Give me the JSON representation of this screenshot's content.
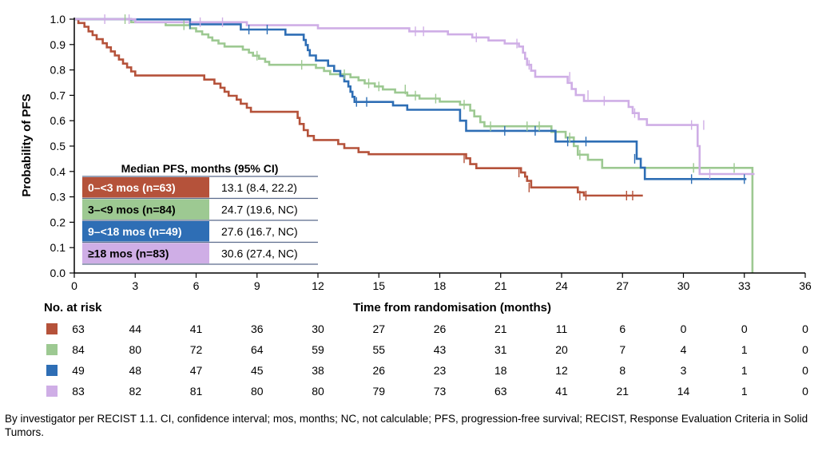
{
  "chart_data": {
    "type": "line",
    "subtype": "kaplan-meier",
    "ylabel": "Probability of PFS",
    "xlabel": "Time from randomisation (months)",
    "xlim": [
      0,
      36
    ],
    "ylim": [
      0,
      1
    ],
    "x_ticks": [
      0,
      3,
      6,
      9,
      12,
      15,
      18,
      21,
      24,
      27,
      30,
      33,
      36
    ],
    "y_ticks": [
      "0.0",
      "0.1",
      "0.2",
      "0.3",
      "0.4",
      "0.5",
      "0.6",
      "0.7",
      "0.8",
      "0.9",
      "1.0"
    ],
    "legend_title": "Median PFS, months (95% CI)",
    "risk_header": "No. at risk",
    "series": [
      {
        "name": "0–<3 mos (n=63)",
        "median": "13.1 (8.4, 22.2)",
        "color": "#b5523a",
        "at_risk": [
          63,
          44,
          41,
          36,
          30,
          27,
          26,
          21,
          11,
          6,
          0,
          0,
          0
        ],
        "steps": [
          [
            0,
            1.0
          ],
          [
            0.2,
            0.985
          ],
          [
            0.5,
            0.97
          ],
          [
            0.7,
            0.952
          ],
          [
            0.9,
            0.937
          ],
          [
            1.1,
            0.921
          ],
          [
            1.4,
            0.905
          ],
          [
            1.6,
            0.889
          ],
          [
            1.8,
            0.873
          ],
          [
            2.0,
            0.857
          ],
          [
            2.2,
            0.841
          ],
          [
            2.4,
            0.825
          ],
          [
            2.6,
            0.81
          ],
          [
            2.8,
            0.794
          ],
          [
            3.0,
            0.778
          ],
          [
            6.4,
            0.762
          ],
          [
            6.9,
            0.746
          ],
          [
            7.2,
            0.73
          ],
          [
            7.4,
            0.714
          ],
          [
            7.6,
            0.698
          ],
          [
            8.0,
            0.683
          ],
          [
            8.2,
            0.667
          ],
          [
            8.5,
            0.651
          ],
          [
            8.7,
            0.635
          ],
          [
            11.0,
            0.611
          ],
          [
            11.1,
            0.587
          ],
          [
            11.3,
            0.563
          ],
          [
            11.5,
            0.54
          ],
          [
            11.8,
            0.524
          ],
          [
            13.0,
            0.508
          ],
          [
            13.3,
            0.492
          ],
          [
            14.0,
            0.476
          ],
          [
            14.5,
            0.468
          ],
          [
            19.3,
            0.452
          ],
          [
            19.5,
            0.429
          ],
          [
            19.8,
            0.413
          ],
          [
            22.0,
            0.396
          ],
          [
            22.2,
            0.38
          ],
          [
            22.3,
            0.363
          ],
          [
            22.5,
            0.337
          ],
          [
            24.8,
            0.318
          ],
          [
            25.1,
            0.305
          ]
        ],
        "end": 28.0,
        "censors": [
          [
            19.2,
            0.452
          ],
          [
            21.9,
            0.396
          ],
          [
            22.4,
            0.337
          ],
          [
            24.9,
            0.305
          ],
          [
            25.2,
            0.305
          ],
          [
            27.2,
            0.305
          ],
          [
            27.5,
            0.305
          ]
        ]
      },
      {
        "name": "3–<9 mos (n=84)",
        "median": "24.7 (19.6, NC)",
        "color": "#9dc992",
        "at_risk": [
          84,
          80,
          72,
          64,
          59,
          55,
          43,
          31,
          20,
          7,
          4,
          1,
          0
        ],
        "steps": [
          [
            0,
            1.0
          ],
          [
            2.8,
            0.988
          ],
          [
            4.5,
            0.976
          ],
          [
            5.7,
            0.964
          ],
          [
            6.0,
            0.952
          ],
          [
            6.3,
            0.94
          ],
          [
            6.6,
            0.928
          ],
          [
            6.8,
            0.916
          ],
          [
            7.1,
            0.904
          ],
          [
            7.4,
            0.892
          ],
          [
            8.3,
            0.88
          ],
          [
            8.6,
            0.868
          ],
          [
            8.8,
            0.856
          ],
          [
            9.1,
            0.844
          ],
          [
            9.4,
            0.832
          ],
          [
            9.6,
            0.82
          ],
          [
            11.9,
            0.808
          ],
          [
            12.3,
            0.796
          ],
          [
            12.6,
            0.783
          ],
          [
            13.6,
            0.771
          ],
          [
            14.0,
            0.759
          ],
          [
            14.3,
            0.747
          ],
          [
            14.8,
            0.735
          ],
          [
            15.2,
            0.723
          ],
          [
            15.8,
            0.711
          ],
          [
            16.4,
            0.699
          ],
          [
            17.0,
            0.687
          ],
          [
            18.0,
            0.675
          ],
          [
            19.0,
            0.663
          ],
          [
            19.5,
            0.64
          ],
          [
            19.7,
            0.617
          ],
          [
            20.0,
            0.594
          ],
          [
            20.2,
            0.578
          ],
          [
            23.5,
            0.556
          ],
          [
            24.2,
            0.534
          ],
          [
            24.6,
            0.5
          ],
          [
            24.8,
            0.466
          ],
          [
            25.3,
            0.446
          ],
          [
            26.0,
            0.414
          ],
          [
            33.2,
            0.414
          ],
          [
            33.4,
            0.0
          ]
        ],
        "end": 33.4,
        "censors": [
          [
            2.5,
            1.0
          ],
          [
            5.4,
            0.976
          ],
          [
            9.0,
            0.856
          ],
          [
            11.2,
            0.82
          ],
          [
            13.3,
            0.783
          ],
          [
            14.5,
            0.747
          ],
          [
            15.0,
            0.735
          ],
          [
            16.3,
            0.723
          ],
          [
            16.8,
            0.699
          ],
          [
            17.8,
            0.687
          ],
          [
            19.2,
            0.663
          ],
          [
            20.5,
            0.578
          ],
          [
            22.3,
            0.578
          ],
          [
            22.9,
            0.578
          ],
          [
            24.4,
            0.534
          ],
          [
            24.9,
            0.466
          ],
          [
            30.5,
            0.414
          ],
          [
            32.5,
            0.414
          ]
        ]
      },
      {
        "name": "9–<18 mos (n=49)",
        "median": "27.6 (16.7, NC)",
        "color": "#2e6eb5",
        "at_risk": [
          49,
          48,
          47,
          45,
          38,
          26,
          23,
          18,
          12,
          8,
          3,
          1,
          0
        ],
        "steps": [
          [
            0,
            1.0
          ],
          [
            2.8,
            0.999
          ],
          [
            5.7,
            0.98
          ],
          [
            8.2,
            0.959
          ],
          [
            10.4,
            0.939
          ],
          [
            11.3,
            0.918
          ],
          [
            11.4,
            0.898
          ],
          [
            11.5,
            0.878
          ],
          [
            11.6,
            0.857
          ],
          [
            11.9,
            0.837
          ],
          [
            12.5,
            0.816
          ],
          [
            12.8,
            0.796
          ],
          [
            13.1,
            0.776
          ],
          [
            13.3,
            0.755
          ],
          [
            13.5,
            0.735
          ],
          [
            13.6,
            0.714
          ],
          [
            13.7,
            0.694
          ],
          [
            13.8,
            0.674
          ],
          [
            15.7,
            0.66
          ],
          [
            16.4,
            0.643
          ],
          [
            19.0,
            0.6
          ],
          [
            19.3,
            0.56
          ],
          [
            23.7,
            0.518
          ],
          [
            26.0,
            0.518
          ],
          [
            27.1,
            0.518
          ],
          [
            27.7,
            0.45
          ],
          [
            27.9,
            0.415
          ],
          [
            28.1,
            0.37
          ]
        ],
        "end": 33.1,
        "censors": [
          [
            5.7,
            0.98
          ],
          [
            8.6,
            0.959
          ],
          [
            9.5,
            0.959
          ],
          [
            13.9,
            0.674
          ],
          [
            14.4,
            0.674
          ],
          [
            21.2,
            0.56
          ],
          [
            22.7,
            0.56
          ],
          [
            24.3,
            0.518
          ],
          [
            25.2,
            0.518
          ],
          [
            27.6,
            0.45
          ],
          [
            30.4,
            0.37
          ],
          [
            33.0,
            0.37
          ]
        ]
      },
      {
        "name": "≥18 mos (n=83)",
        "median": "30.6 (27.4, NC)",
        "color": "#cfaee6",
        "at_risk": [
          83,
          82,
          81,
          80,
          80,
          79,
          73,
          63,
          41,
          21,
          14,
          1,
          0
        ],
        "steps": [
          [
            0,
            1.0
          ],
          [
            3.0,
            0.988
          ],
          [
            8.5,
            0.976
          ],
          [
            12.0,
            0.964
          ],
          [
            16.5,
            0.952
          ],
          [
            18.4,
            0.94
          ],
          [
            19.6,
            0.928
          ],
          [
            20.4,
            0.916
          ],
          [
            21.2,
            0.904
          ],
          [
            21.9,
            0.892
          ],
          [
            22.1,
            0.868
          ],
          [
            22.2,
            0.844
          ],
          [
            22.3,
            0.82
          ],
          [
            22.5,
            0.797
          ],
          [
            22.7,
            0.773
          ],
          [
            24.3,
            0.749
          ],
          [
            24.5,
            0.725
          ],
          [
            24.7,
            0.701
          ],
          [
            25.1,
            0.678
          ],
          [
            27.3,
            0.654
          ],
          [
            27.5,
            0.63
          ],
          [
            27.8,
            0.606
          ],
          [
            28.2,
            0.583
          ],
          [
            30.7,
            0.5
          ],
          [
            30.8,
            0.39
          ]
        ],
        "end": 33.5,
        "censors": [
          [
            1.5,
            1.0
          ],
          [
            2.7,
            1.0
          ],
          [
            6.2,
            0.988
          ],
          [
            7.3,
            0.988
          ],
          [
            16.8,
            0.952
          ],
          [
            17.2,
            0.952
          ],
          [
            19.8,
            0.928
          ],
          [
            21.8,
            0.904
          ],
          [
            22.4,
            0.82
          ],
          [
            24.4,
            0.773
          ],
          [
            25.3,
            0.701
          ],
          [
            26.1,
            0.678
          ],
          [
            27.6,
            0.63
          ],
          [
            30.4,
            0.583
          ],
          [
            31.0,
            0.583
          ],
          [
            31.3,
            0.39
          ]
        ]
      }
    ]
  },
  "footnote": "By investigator per RECIST 1.1. CI, confidence interval; mos, months; NC, not calculable; PFS, progression-free survival; RECIST, Response Evaluation Criteria in Solid Tumors."
}
